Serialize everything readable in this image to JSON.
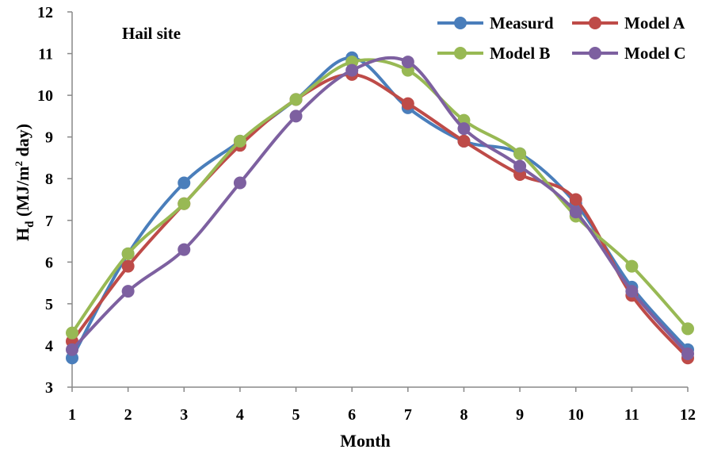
{
  "chart_data": {
    "type": "line",
    "title": "",
    "annotation": "Hail site",
    "xlabel": "Month",
    "ylabel": {
      "main": "H",
      "sub": "d",
      "rest": " (MJ/m",
      "sup": "2",
      "end": " day)"
    },
    "x": [
      1,
      2,
      3,
      4,
      5,
      6,
      7,
      8,
      9,
      10,
      11,
      12
    ],
    "x_ticks": [
      "1",
      "2",
      "3",
      "4",
      "5",
      "6",
      "7",
      "8",
      "9",
      "10",
      "11",
      "12"
    ],
    "ylim": [
      3,
      12
    ],
    "y_ticks": [
      "3",
      "4",
      "5",
      "6",
      "7",
      "8",
      "9",
      "10",
      "11",
      "12"
    ],
    "grid": false,
    "smooth": true,
    "legend_position": "top-right",
    "series": [
      {
        "name": "Measurd",
        "color": "#4a7ebb",
        "values": [
          3.7,
          6.2,
          7.9,
          8.9,
          9.9,
          10.9,
          9.7,
          8.9,
          8.6,
          7.4,
          5.4,
          3.9
        ]
      },
      {
        "name": "Model A",
        "color": "#be4b48",
        "values": [
          4.1,
          5.9,
          7.4,
          8.8,
          9.9,
          10.5,
          9.8,
          8.9,
          8.1,
          7.5,
          5.2,
          3.7
        ]
      },
      {
        "name": "Model B",
        "color": "#98b954",
        "values": [
          4.3,
          6.2,
          7.4,
          8.9,
          9.9,
          10.8,
          10.6,
          9.4,
          8.6,
          7.1,
          5.9,
          4.4
        ]
      },
      {
        "name": "Model C",
        "color": "#7d60a0",
        "values": [
          3.9,
          5.3,
          6.3,
          7.9,
          9.5,
          10.6,
          10.8,
          9.2,
          8.3,
          7.2,
          5.3,
          3.8
        ]
      }
    ]
  }
}
